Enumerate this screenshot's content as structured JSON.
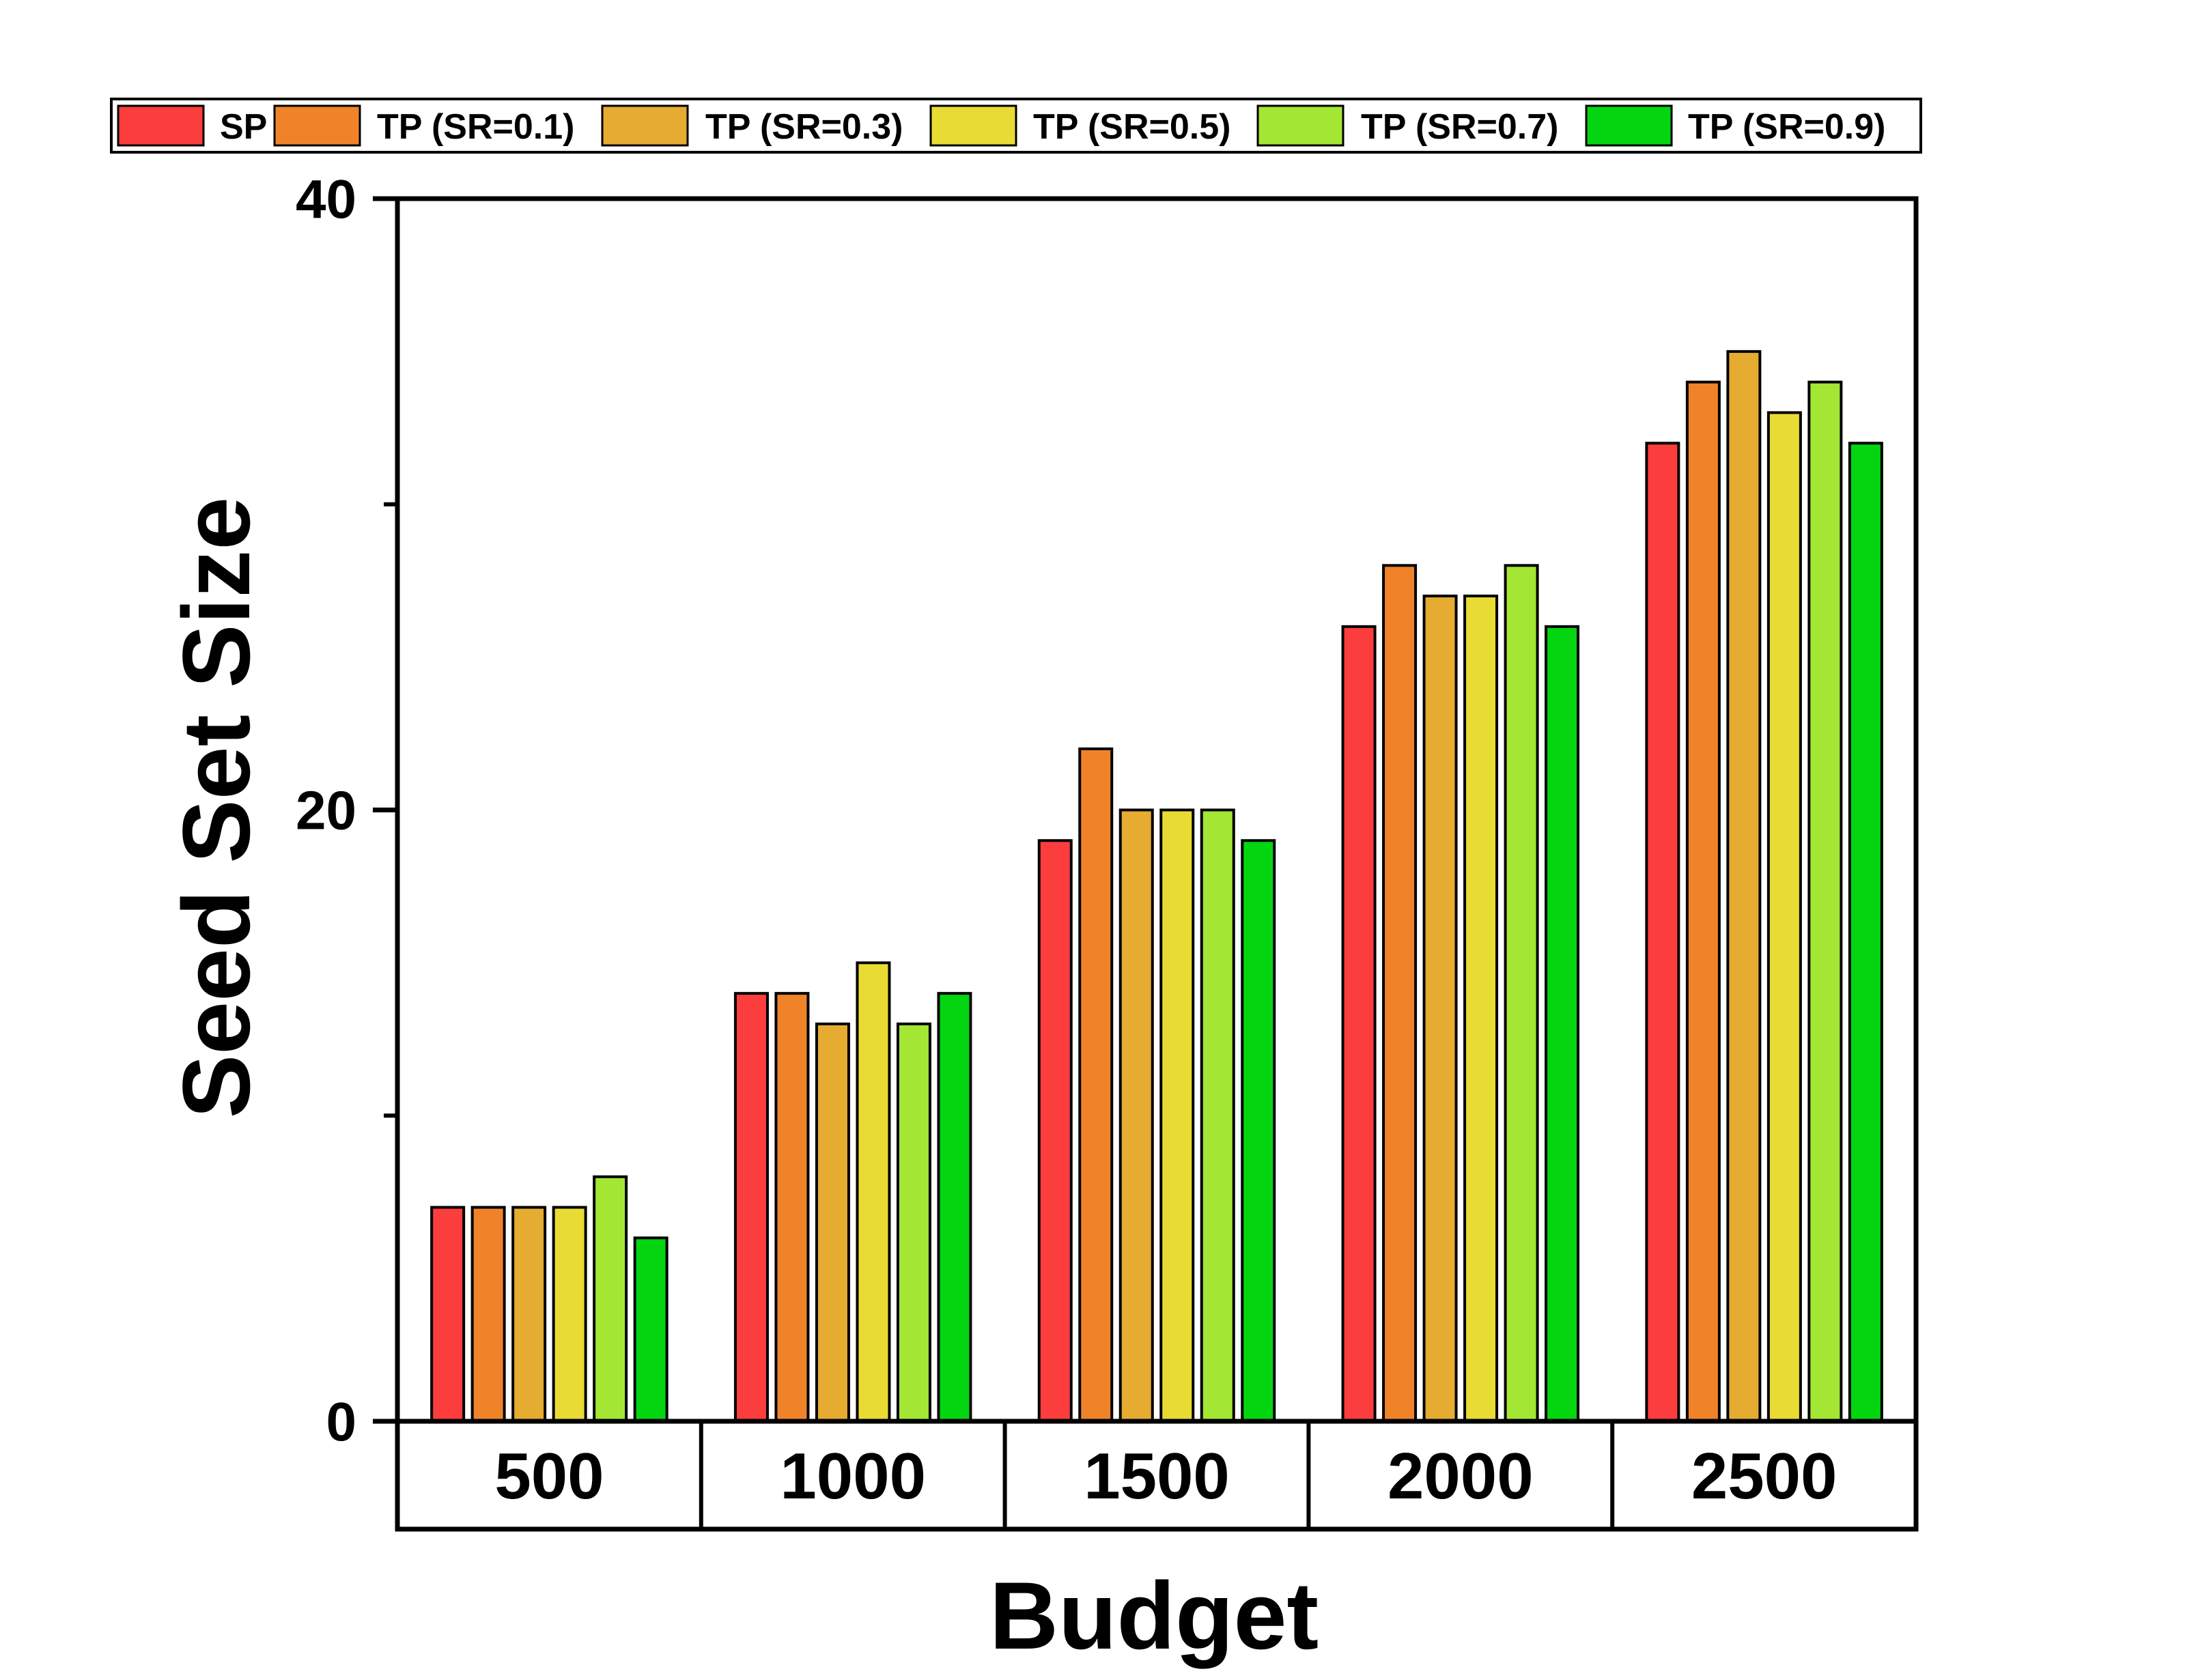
{
  "chart_data": {
    "type": "bar",
    "xlabel": "Budget",
    "ylabel": "Seed Set Size",
    "ylim": [
      0,
      40
    ],
    "y_ticks": [
      0,
      20,
      40
    ],
    "y_minor_ticks": [
      10,
      30
    ],
    "categories": [
      "500",
      "1000",
      "1500",
      "2000",
      "2500"
    ],
    "series": [
      {
        "name": "SP",
        "color": "#fb3d3d",
        "values": [
          7,
          14,
          19,
          26,
          32
        ]
      },
      {
        "name": "TP (SR=0.1)",
        "color": "#f0832a",
        "values": [
          7,
          14,
          22,
          28,
          34
        ]
      },
      {
        "name": "TP (SR=0.3)",
        "color": "#e6ab31",
        "values": [
          7,
          13,
          20,
          27,
          35
        ]
      },
      {
        "name": "TP (SR=0.5)",
        "color": "#e8dc34",
        "values": [
          7,
          15,
          20,
          27,
          33
        ]
      },
      {
        "name": "TP (SR=0.7)",
        "color": "#a4e634",
        "values": [
          8,
          13,
          20,
          28,
          34
        ]
      },
      {
        "name": "TP (SR=0.9)",
        "color": "#03d611",
        "values": [
          6,
          14,
          19,
          26,
          32
        ]
      }
    ],
    "grid": false,
    "legend_position": "top"
  }
}
